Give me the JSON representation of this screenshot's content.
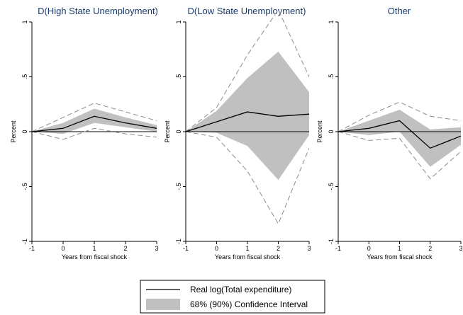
{
  "x_axis_label": "Years from fiscal shock",
  "y_axis_label": "Percent",
  "chart_data": [
    {
      "type": "line",
      "title": "D(High State Unemployment)",
      "xlabel": "Years from fiscal shock",
      "ylabel": "Percent",
      "x": [
        -1,
        0,
        1,
        2,
        3
      ],
      "xticks": [
        "-1",
        "0",
        "1",
        "2",
        "3"
      ],
      "yticks": [
        "-1",
        "-.5",
        "0",
        ".5",
        "1"
      ],
      "xlim": [
        -1,
        3
      ],
      "ylim": [
        -1,
        1
      ],
      "series": [
        {
          "name": "Real log(Total expenditure)",
          "values": [
            0,
            0.03,
            0.14,
            0.08,
            0.03
          ]
        },
        {
          "band": "68%",
          "lower": [
            0,
            -0.02,
            0.08,
            0.04,
            0.0
          ],
          "upper": [
            0,
            0.08,
            0.21,
            0.13,
            0.06
          ]
        },
        {
          "band": "90%",
          "lower": [
            0,
            -0.07,
            0.03,
            -0.02,
            -0.05
          ],
          "upper": [
            0,
            0.13,
            0.26,
            0.18,
            0.1
          ]
        }
      ]
    },
    {
      "type": "line",
      "title": "D(Low State Unemployment)",
      "xlabel": "Years from fiscal shock",
      "ylabel": "Percent",
      "x": [
        -1,
        0,
        1,
        2,
        3
      ],
      "xticks": [
        "-1",
        "0",
        "1",
        "2",
        "3"
      ],
      "yticks": [
        "-1",
        "-.5",
        "0",
        ".5",
        "1"
      ],
      "xlim": [
        -1,
        3
      ],
      "ylim": [
        -1,
        1
      ],
      "series": [
        {
          "name": "Real log(Total expenditure)",
          "values": [
            0,
            0.09,
            0.18,
            0.14,
            0.16
          ]
        },
        {
          "band": "68%",
          "lower": [
            0,
            -0.01,
            -0.13,
            -0.44,
            -0.03
          ],
          "upper": [
            0,
            0.19,
            0.49,
            0.73,
            0.36
          ]
        },
        {
          "band": "90%",
          "lower": [
            0,
            -0.05,
            -0.36,
            -0.84,
            -0.15
          ],
          "upper": [
            0,
            0.22,
            0.7,
            1.11,
            0.5
          ]
        }
      ]
    },
    {
      "type": "line",
      "title": "Other",
      "xlabel": "Years from fiscal shock",
      "ylabel": "Percent",
      "x": [
        -1,
        0,
        1,
        2,
        3
      ],
      "xticks": [
        "-1",
        "0",
        "1",
        "2",
        "3"
      ],
      "yticks": [
        "-1",
        "-.5",
        "0",
        ".5",
        "1"
      ],
      "xlim": [
        -1,
        3
      ],
      "ylim": [
        -1,
        1
      ],
      "series": [
        {
          "name": "Real log(Total expenditure)",
          "values": [
            0,
            0.03,
            0.1,
            -0.15,
            -0.04
          ]
        },
        {
          "band": "68%",
          "lower": [
            0,
            -0.03,
            0.0,
            -0.32,
            -0.12
          ],
          "upper": [
            0,
            0.1,
            0.2,
            0.02,
            0.04
          ]
        },
        {
          "band": "90%",
          "lower": [
            0,
            -0.08,
            -0.06,
            -0.43,
            -0.18
          ],
          "upper": [
            0,
            0.15,
            0.27,
            0.14,
            0.1
          ]
        }
      ]
    }
  ],
  "legend": {
    "placement": "bottom",
    "items": [
      {
        "label": "Real log(Total expenditure)",
        "kind": "line",
        "color": "#000000"
      },
      {
        "label": "68% (90%) Confidence Interval",
        "kind": "band",
        "color": "#c0c0c0"
      }
    ]
  },
  "colors": {
    "title": "#1a3a6b",
    "line": "#000000",
    "band": "#c0c0c0",
    "dashed": "#8c8c8c",
    "zero_line": "#000000"
  }
}
